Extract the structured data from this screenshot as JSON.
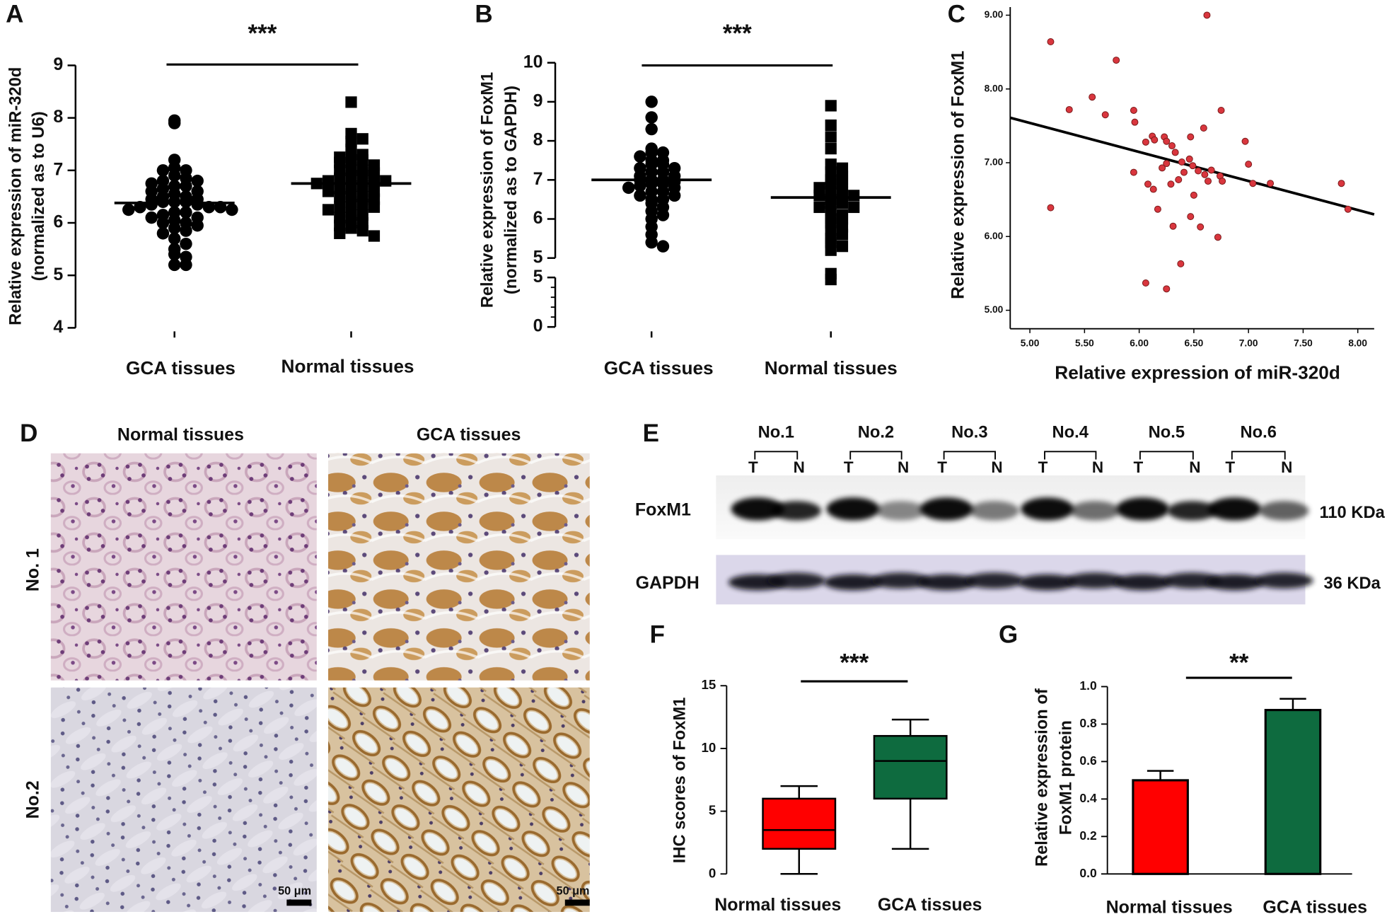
{
  "chart_data": [
    {
      "type": "strip",
      "panel_label": "A",
      "title": "***",
      "ylabel": [
        "Relative expression of miR-320d",
        "(normalized as to U6)"
      ],
      "categories": [
        "GCA tissues",
        "Normal tissues"
      ],
      "series": [
        {
          "marker": "circle",
          "color": "#000000",
          "mean": 6.38,
          "values": [
            7.9,
            7.95,
            7.2,
            7.05,
            7.0,
            7.0,
            6.9,
            6.85,
            6.8,
            6.8,
            6.75,
            6.7,
            6.7,
            6.65,
            6.6,
            6.6,
            6.55,
            6.5,
            6.5,
            6.45,
            6.45,
            6.4,
            6.4,
            6.4,
            6.35,
            6.35,
            6.3,
            6.3,
            6.3,
            6.25,
            6.25,
            6.2,
            6.2,
            6.15,
            6.1,
            6.1,
            6.05,
            6.0,
            6.0,
            5.95,
            5.9,
            5.85,
            5.8,
            5.7,
            5.6,
            5.5,
            5.4,
            5.35,
            5.2,
            5.2
          ]
        },
        {
          "marker": "square",
          "color": "#000000",
          "mean": 6.75,
          "values": [
            8.3,
            7.7,
            7.6,
            7.55,
            7.4,
            7.3,
            7.25,
            7.2,
            7.2,
            7.15,
            7.1,
            7.05,
            7.0,
            7.0,
            6.95,
            6.9,
            6.9,
            6.85,
            6.8,
            6.8,
            6.8,
            6.75,
            6.7,
            6.7,
            6.65,
            6.6,
            6.6,
            6.55,
            6.5,
            6.5,
            6.45,
            6.4,
            6.35,
            6.3,
            6.3,
            6.25,
            6.2,
            6.15,
            6.1,
            6.05,
            6.0,
            5.95,
            5.9,
            5.85,
            5.8,
            5.75
          ]
        }
      ],
      "ylim": [
        4,
        9
      ],
      "yticks": [
        4,
        5,
        6,
        7,
        8,
        9
      ]
    },
    {
      "type": "strip",
      "panel_label": "B",
      "title": "***",
      "ylabel": [
        "Relative expression of FoxM1",
        "(normalized as to GAPDH)"
      ],
      "categories": [
        "GCA tissues",
        "Normal tissues"
      ],
      "series": [
        {
          "marker": "circle",
          "color": "#000000",
          "mean": 7.0,
          "values": [
            9.0,
            8.6,
            8.3,
            7.8,
            7.7,
            7.7,
            7.6,
            7.5,
            7.5,
            7.4,
            7.4,
            7.3,
            7.3,
            7.2,
            7.2,
            7.1,
            7.1,
            7.0,
            7.0,
            7.0,
            6.95,
            6.9,
            6.9,
            6.85,
            6.8,
            6.8,
            6.7,
            6.7,
            6.6,
            6.6,
            6.5,
            6.5,
            6.4,
            6.3,
            6.2,
            6.1,
            6.0,
            5.8,
            5.6,
            5.4,
            5.3
          ]
        },
        {
          "marker": "square",
          "color": "#000000",
          "mean": 6.55,
          "values": [
            8.9,
            8.4,
            8.1,
            7.8,
            7.4,
            7.3,
            7.2,
            7.1,
            7.0,
            7.0,
            6.9,
            6.8,
            6.8,
            6.7,
            6.7,
            6.6,
            6.6,
            6.5,
            6.5,
            6.4,
            6.4,
            6.3,
            6.3,
            6.2,
            6.1,
            6.0,
            6.0,
            5.9,
            5.8,
            5.7,
            5.6,
            5.5,
            5.4,
            5.3,
            5.2,
            4.6,
            4.45
          ]
        }
      ],
      "ylim": [
        5,
        10
      ],
      "yticks": [
        5,
        6,
        7,
        8,
        9,
        10
      ],
      "ylim_lower": [
        0,
        5
      ],
      "yticks_lower": [
        0,
        5
      ]
    },
    {
      "type": "scatter",
      "panel_label": "C",
      "color": "#d9363e",
      "xlabel": "Relative expression of miR-320d",
      "ylabel": "Relative expression of FoxM1",
      "x": [
        5.19,
        5.19,
        5.36,
        5.57,
        5.69,
        5.79,
        5.95,
        5.96,
        5.95,
        6.06,
        6.12,
        6.14,
        6.08,
        6.13,
        6.17,
        6.06,
        6.23,
        6.25,
        6.3,
        6.33,
        6.25,
        6.21,
        6.29,
        6.31,
        6.25,
        6.39,
        6.41,
        6.36,
        6.38,
        6.46,
        6.47,
        6.49,
        6.5,
        6.47,
        6.54,
        6.56,
        6.59,
        6.62,
        6.6,
        6.63,
        6.66,
        6.72,
        6.75,
        6.74,
        6.76,
        6.97,
        7.0,
        7.04,
        7.2,
        7.85,
        7.91
      ],
      "values": [
        8.64,
        6.39,
        7.72,
        7.89,
        7.65,
        8.39,
        7.71,
        7.55,
        6.87,
        7.28,
        7.36,
        7.31,
        6.71,
        6.64,
        6.37,
        5.37,
        7.35,
        7.29,
        7.23,
        7.14,
        6.99,
        6.93,
        6.71,
        6.14,
        5.29,
        7.01,
        6.87,
        6.77,
        5.63,
        7.05,
        7.35,
        6.96,
        6.56,
        6.27,
        6.89,
        6.13,
        7.47,
        9.0,
        6.84,
        6.75,
        6.9,
        5.99,
        7.71,
        6.82,
        6.75,
        7.29,
        6.98,
        6.72,
        6.72,
        6.72,
        6.37
      ],
      "fit_line": {
        "x": [
          4.82,
          8.15
        ],
        "y": [
          7.61,
          6.3
        ]
      },
      "xlim": [
        4.82,
        8.15
      ],
      "ylim": [
        4.75,
        9.11
      ],
      "xticks": [
        {
          "value": 5,
          "label": "5.00"
        },
        {
          "value": 5.5,
          "label": "5.50"
        },
        {
          "value": 6,
          "label": "6.00"
        },
        {
          "value": 6.5,
          "label": "6.50"
        },
        {
          "value": 7,
          "label": "7.00"
        },
        {
          "value": 7.5,
          "label": "7.50"
        },
        {
          "value": 8,
          "label": "8.00"
        }
      ],
      "yticks": [
        {
          "value": 5,
          "label": "5.00"
        },
        {
          "value": 6,
          "label": "6.00"
        },
        {
          "value": 7,
          "label": "7.00"
        },
        {
          "value": 8,
          "label": "8.00"
        },
        {
          "value": 9,
          "label": "9.00"
        }
      ]
    },
    {
      "type": "box",
      "panel_label": "F",
      "title": "***",
      "ylabel": "IHC scores of FoxM1",
      "categories": [
        "Normal tissues",
        "GCA tissues"
      ],
      "colors": [
        "#ff0000",
        "#0e6b3f"
      ],
      "boxes": [
        {
          "min": 0,
          "q1": 2,
          "median": 3.5,
          "q3": 6,
          "max": 7
        },
        {
          "min": 2,
          "q1": 6,
          "median": 9,
          "q3": 11,
          "max": 12.3
        }
      ],
      "ylim": [
        0,
        15
      ],
      "yticks": [
        0,
        5,
        10,
        15
      ]
    },
    {
      "type": "bar",
      "panel_label": "G",
      "title": "**",
      "ylabel": [
        "Relative expression of",
        "FoxM1 protein"
      ],
      "categories": [
        "Normal tissues",
        "GCA tissues"
      ],
      "colors": [
        "#ff0000",
        "#0e6b3f"
      ],
      "values": [
        0.5,
        0.875
      ],
      "errors": [
        0.05,
        0.06
      ],
      "ylim": [
        0,
        1
      ],
      "yticks": [
        {
          "value": 0,
          "label": "0.0"
        },
        0.2,
        0.4,
        0.6,
        0.8,
        {
          "value": 1,
          "label": "1.0"
        }
      ]
    }
  ],
  "histology": {
    "panel_label": "D",
    "columns": [
      "Normal tissues",
      "GCA tissues"
    ],
    "rows": [
      "No. 1",
      "No.2"
    ],
    "scale_bar": "50 μm"
  },
  "western_blot": {
    "panel_label": "E",
    "samples": [
      "No.1",
      "No.2",
      "No.3",
      "No.4",
      "No.5",
      "No.6"
    ],
    "lanes": [
      "T",
      "N"
    ],
    "proteins": [
      "FoxM1",
      "GAPDH"
    ],
    "sizes": [
      "110 KDa",
      "36 KDa"
    ]
  }
}
